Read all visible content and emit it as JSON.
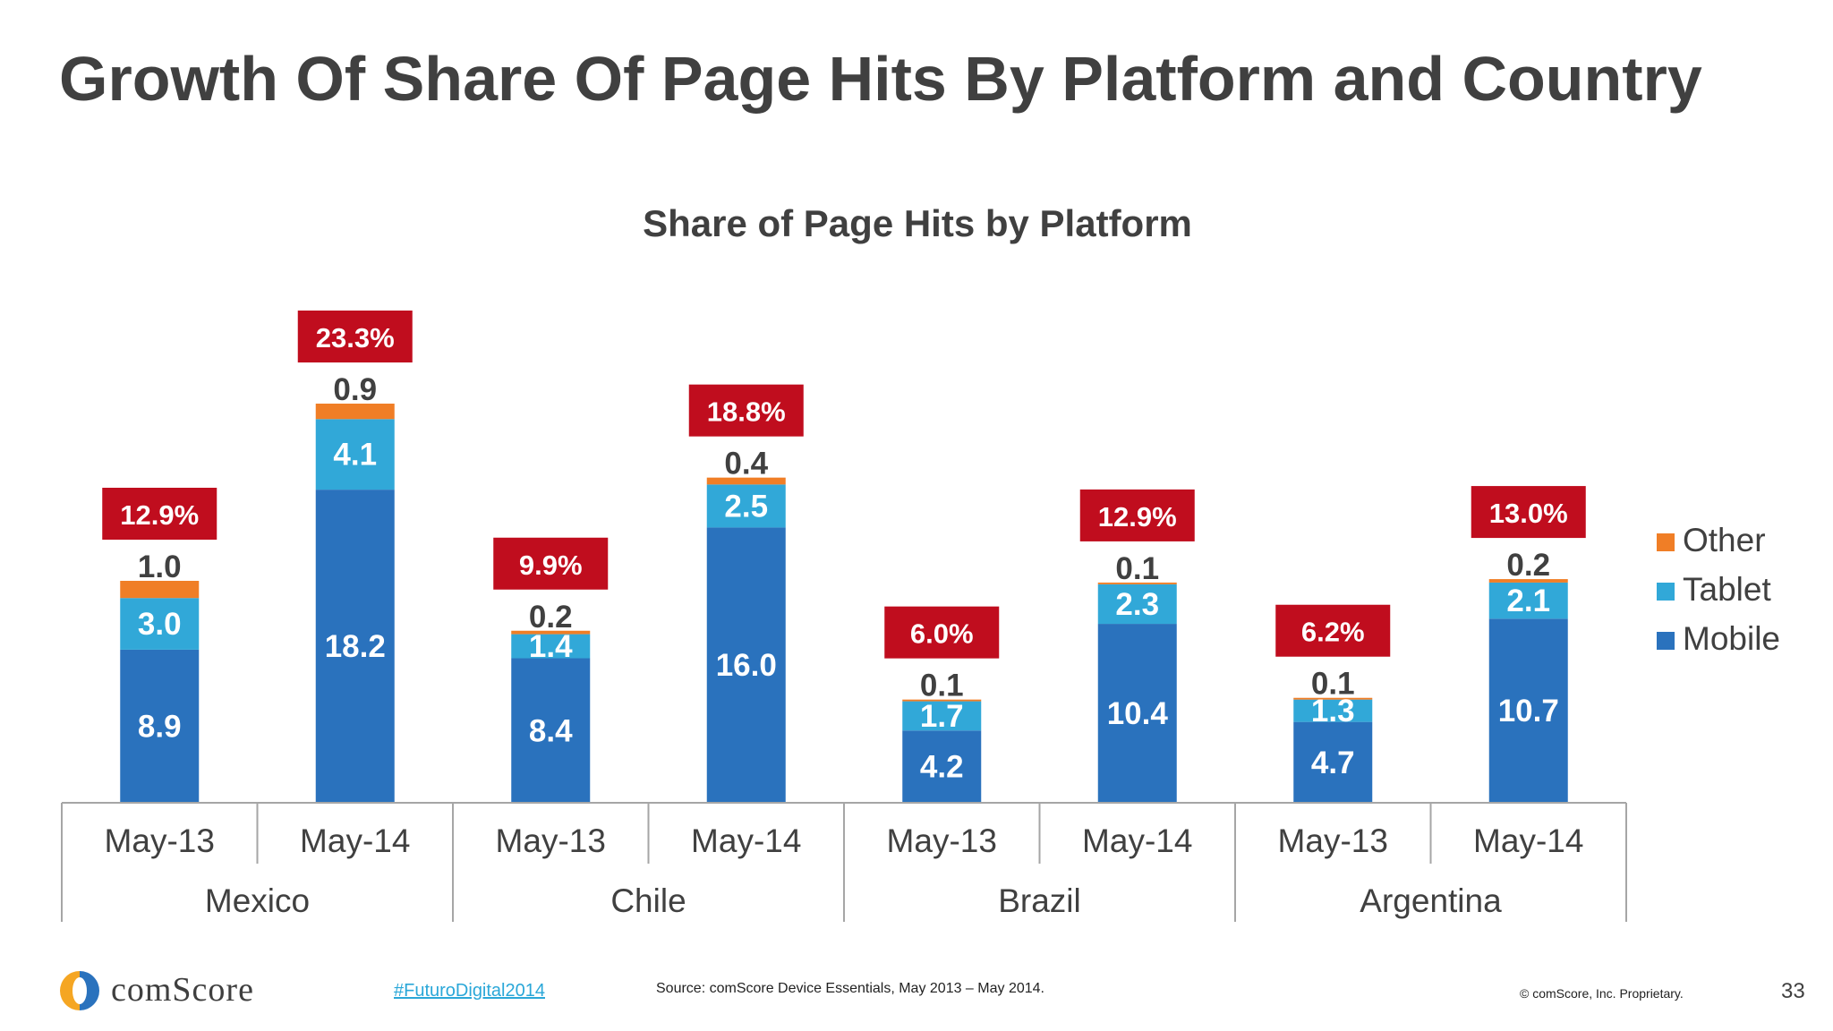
{
  "slide": {
    "title": "Growth Of Share Of Page Hits By Platform and Country"
  },
  "chart_data": {
    "type": "bar",
    "stacked": true,
    "title": "Share of Page Hits by Platform",
    "groups": [
      "Mexico",
      "Chile",
      "Brazil",
      "Argentina"
    ],
    "categories": [
      "May-13",
      "May-14",
      "May-13",
      "May-14",
      "May-13",
      "May-14",
      "May-13",
      "May-14"
    ],
    "series": [
      {
        "name": "Mobile",
        "color": "#2a72bd",
        "values": [
          8.9,
          18.2,
          8.4,
          16.0,
          4.2,
          10.4,
          4.7,
          10.7
        ]
      },
      {
        "name": "Tablet",
        "color": "#31a8d8",
        "values": [
          3.0,
          4.1,
          1.4,
          2.5,
          1.7,
          2.3,
          1.3,
          2.1
        ]
      },
      {
        "name": "Other",
        "color": "#f07e26",
        "values": [
          1.0,
          0.9,
          0.2,
          0.4,
          0.1,
          0.1,
          0.1,
          0.2
        ]
      }
    ],
    "value_labels": {
      "Mobile": [
        "8.9",
        "18.2",
        "8.4",
        "16.0",
        "4.2",
        "10.4",
        "4.7",
        "10.7"
      ],
      "Tablet": [
        "3.0",
        "4.1",
        "1.4",
        "2.5",
        "1.7",
        "2.3",
        "1.3",
        "2.1"
      ],
      "Other": [
        "1.0",
        "0.9",
        "0.2",
        "0.4",
        "0.1",
        "0.1",
        "0.1",
        "0.2"
      ]
    },
    "totals": [
      "12.9%",
      "23.3%",
      "9.9%",
      "18.8%",
      "6.0%",
      "12.9%",
      "6.2%",
      "13.0%"
    ],
    "total_label_color": "#c00d1e",
    "legend": {
      "position": "right",
      "order": [
        "Other",
        "Tablet",
        "Mobile"
      ]
    },
    "ylim": [
      0,
      24.5
    ],
    "grid": false
  },
  "footer": {
    "logo": "comScore",
    "hashtag": "#FuturoDigital2014",
    "source": "Source: comScore Device Essentials, May 2013 – May 2014.",
    "copyright": "© comScore, Inc. Proprietary.",
    "page_number": "33"
  },
  "colors": {
    "title": "#404040",
    "hashtag": "#2aa7d8",
    "logo_orange": "#f5a623",
    "logo_blue": "#2a72bd"
  }
}
